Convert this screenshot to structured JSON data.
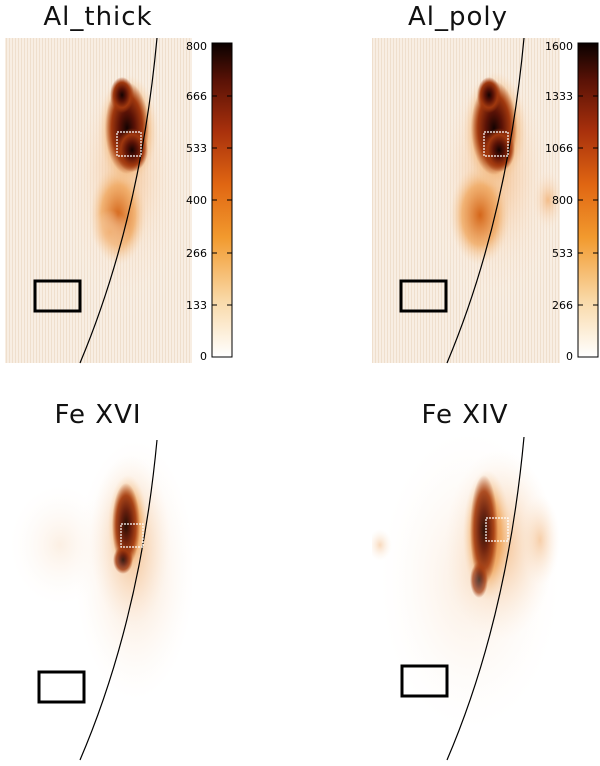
{
  "panels": [
    {
      "title": "Al_thick",
      "colorbar_ticks": [
        "0",
        "133",
        "266",
        "400",
        "533",
        "666",
        "800"
      ]
    },
    {
      "title": "Al_poly",
      "colorbar_ticks": [
        "0",
        "266",
        "533",
        "800",
        "1066",
        "1333",
        "1600"
      ]
    },
    {
      "title": "Fe XVI"
    },
    {
      "title": "Fe XIV"
    }
  ],
  "colors": {
    "background_tint": "#f6ece1",
    "low": "#fdf3ea",
    "mid": "#e8801e",
    "high": "#8a2408",
    "peak": "#140302",
    "limb_line": "#000000",
    "box_outline": "#000000",
    "zoom_box": "#ffffff"
  }
}
